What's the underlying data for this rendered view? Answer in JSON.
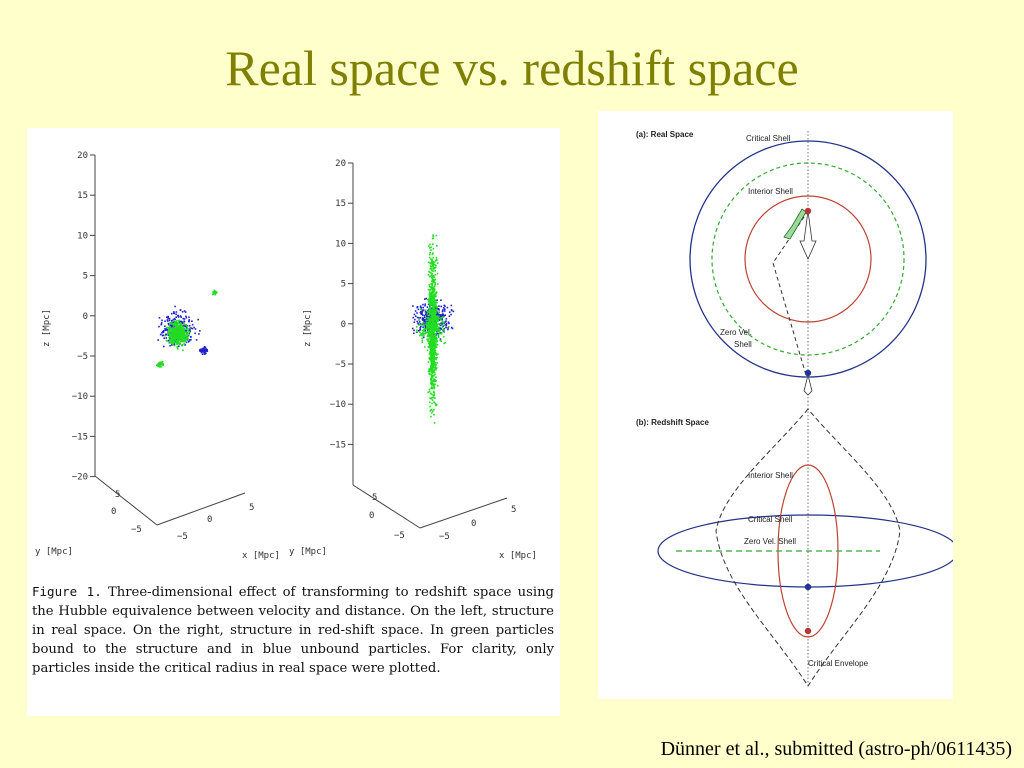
{
  "slide": {
    "title": "Real space vs. redshift space",
    "credit": "Dünner et al., submitted (astro-ph/0611435)"
  },
  "figure1": {
    "caption_lead": "Figure 1.",
    "caption_body": "Three-dimensional effect of transforming to redshift space using the Hubble equivalence between velocity and distance. On the left, structure in real space. On the right, structure in red-shift space. In green particles bound to the structure and in blue unbound particles. For clarity, only particles inside the critical radius in real space were plotted.",
    "left_z_ticks": [
      "20",
      "15",
      "10",
      "5",
      "0",
      "−5",
      "−10",
      "−15",
      "−20"
    ],
    "right_z_ticks": [
      "20",
      "15",
      "10",
      "5",
      "0",
      "−5",
      "−10",
      "−15"
    ],
    "z_label": "z [Mpc]",
    "y_label": "y [Mpc]",
    "x_label": "x [Mpc]",
    "y_ticks": [
      "5",
      "0",
      "−5"
    ],
    "x_ticks": [
      "5",
      "0",
      "−5"
    ],
    "colors": {
      "bound": "#22dd22",
      "unbound": "#2222cc"
    }
  },
  "figure2": {
    "panel_a_title": "(a): Real Space",
    "panel_b_title": "(b): Redshift Space",
    "a_critical": "Critical Shell",
    "a_interior": "Interior Shell",
    "a_zero1": "Zero Vel.",
    "a_zero2": "Shell",
    "b_interior": "Interior Shell",
    "b_critical": "Critical Shell",
    "b_zero": "Zero Vel. Shell",
    "b_envelope": "Critical Envelope",
    "colors": {
      "critical": "#223388",
      "interior": "#bb4433",
      "zero": "#33aa33"
    }
  }
}
